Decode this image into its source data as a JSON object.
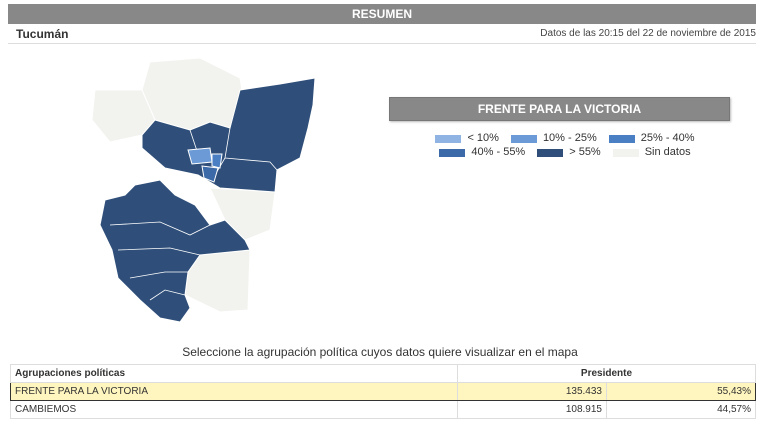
{
  "header": {
    "title": "RESUMEN"
  },
  "subheader": {
    "province": "Tucumán",
    "timestamp": "Datos de las 20:15 del 22 de noviembre de 2015"
  },
  "map_panel": {
    "party": "FRENTE PARA LA VICTORIA",
    "legend": [
      {
        "label": "< 10%",
        "color": "#8fb4e3"
      },
      {
        "label": "10% - 25%",
        "color": "#6b9ad6"
      },
      {
        "label": "25% - 40%",
        "color": "#4a7fc4"
      },
      {
        "label": "40% - 55%",
        "color": "#3c6aa8"
      },
      {
        "label": "> 55%",
        "color": "#2f4f7a"
      },
      {
        "label": "Sin datos",
        "color": "#f2f2ee"
      }
    ]
  },
  "instruction": "Seleccione la agrupación política cuyos datos quiere visualizar en el mapa",
  "table": {
    "col_agrupaciones": "Agrupaciones políticas",
    "col_presidente": "Presidente",
    "rows": [
      {
        "name": "FRENTE PARA LA VICTORIA",
        "votes": "135.433",
        "pct": "55,43%"
      },
      {
        "name": "CAMBIEMOS",
        "votes": "108.915",
        "pct": "44,57%"
      }
    ]
  }
}
